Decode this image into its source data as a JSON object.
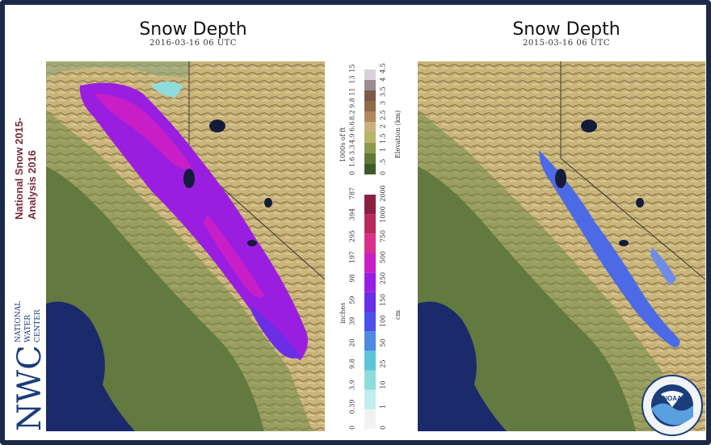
{
  "left_panel": {
    "title": "Snow Depth",
    "date": "2016-03-16 06 UTC"
  },
  "right_panel": {
    "title": "Snow Depth",
    "date": "2015-03-16 06 UTC"
  },
  "branding": {
    "program_line1": "National Snow 2015-",
    "program_line2": "Analysis 2016",
    "logo_letters": "NWC",
    "logo_line1": "NATIONAL",
    "logo_line2": "WATER",
    "logo_line3": "CENTER"
  },
  "elevation_legend": {
    "unit_ft": "1000s of ft",
    "unit_km": "Elevation (km)",
    "ft_ticks": [
      "0",
      "1.6",
      "3.3",
      "4.9",
      "6.6",
      "8.2",
      "9.8",
      "11",
      "13",
      "15"
    ],
    "km_ticks": [
      "0",
      ".5",
      "1",
      "1.5",
      "2",
      "2.5",
      "3",
      "3.5",
      "4",
      "4.5"
    ],
    "colors": [
      "#3d5a2a",
      "#5f7a38",
      "#8d9a4c",
      "#b8b46a",
      "#c9b07c",
      "#b08a5e",
      "#8f6b4a",
      "#7a5a4a",
      "#9b8c94",
      "#d8d2d8"
    ]
  },
  "snow_legend": {
    "unit_in": "inches",
    "unit_cm": "cm",
    "in_ticks": [
      "0",
      "0.39",
      "3.9",
      "9.8",
      "20",
      "39",
      "59",
      "98",
      "197",
      "295",
      "394",
      "787"
    ],
    "cm_ticks": [
      "0",
      "1",
      "10",
      "25",
      "50",
      "100",
      "150",
      "250",
      "500",
      "750",
      "1000",
      "2000"
    ],
    "colors": [
      "#f2f2f2",
      "#bfeeee",
      "#8fdcdc",
      "#5cc4d6",
      "#4d8ae0",
      "#4b50e6",
      "#6a2ee6",
      "#9a1ee0",
      "#c81ec8",
      "#d8308c",
      "#b82a5a",
      "#8a2040"
    ]
  },
  "noaa": {
    "label": "NOAA"
  }
}
